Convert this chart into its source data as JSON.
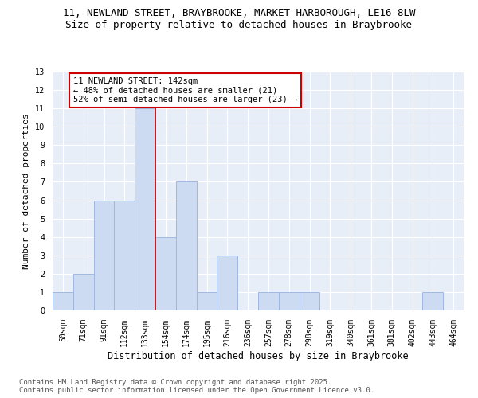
{
  "title": "11, NEWLAND STREET, BRAYBROOKE, MARKET HARBOROUGH, LE16 8LW",
  "subtitle": "Size of property relative to detached houses in Braybrooke",
  "xlabel": "Distribution of detached houses by size in Braybrooke",
  "ylabel": "Number of detached properties",
  "bar_color": "#ccdaf2",
  "bar_edge_color": "#a0b8e0",
  "background_color": "#e8eef8",
  "grid_color": "#ffffff",
  "categories": [
    "50sqm",
    "71sqm",
    "91sqm",
    "112sqm",
    "133sqm",
    "154sqm",
    "174sqm",
    "195sqm",
    "216sqm",
    "236sqm",
    "257sqm",
    "278sqm",
    "298sqm",
    "319sqm",
    "340sqm",
    "361sqm",
    "381sqm",
    "402sqm",
    "443sqm",
    "464sqm"
  ],
  "values": [
    1,
    2,
    6,
    6,
    11,
    4,
    7,
    1,
    3,
    0,
    1,
    1,
    1,
    0,
    0,
    0,
    0,
    0,
    1,
    0
  ],
  "red_line_x": 4.5,
  "annotation_text": "11 NEWLAND STREET: 142sqm\n← 48% of detached houses are smaller (21)\n52% of semi-detached houses are larger (23) →",
  "annotation_box_color": "#ffffff",
  "annotation_box_edge": "#cc0000",
  "red_line_color": "#cc0000",
  "ylim": [
    0,
    13
  ],
  "yticks": [
    0,
    1,
    2,
    3,
    4,
    5,
    6,
    7,
    8,
    9,
    10,
    11,
    12,
    13
  ],
  "footer": "Contains HM Land Registry data © Crown copyright and database right 2025.\nContains public sector information licensed under the Open Government Licence v3.0.",
  "title_fontsize": 9,
  "subtitle_fontsize": 9,
  "xlabel_fontsize": 8.5,
  "ylabel_fontsize": 8,
  "tick_fontsize": 7,
  "annotation_fontsize": 7.5,
  "footer_fontsize": 6.5
}
